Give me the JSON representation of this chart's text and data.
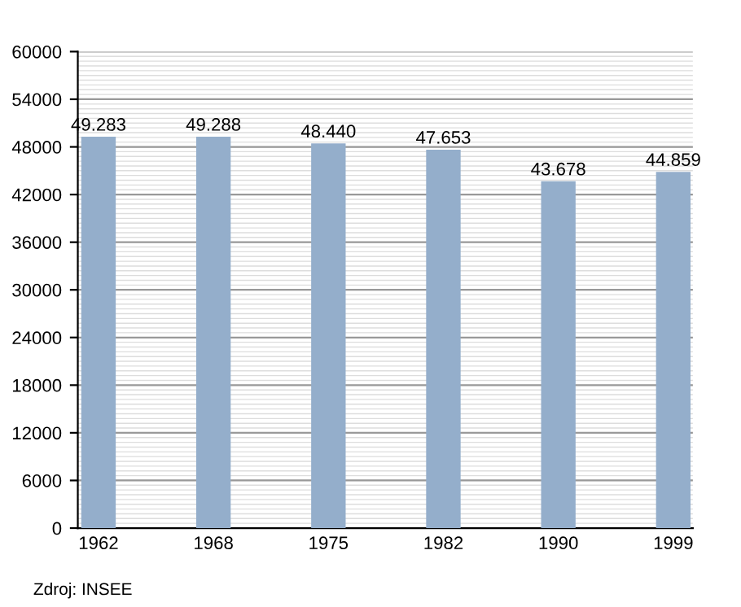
{
  "chart_data": {
    "type": "bar",
    "categories": [
      "1962",
      "1968",
      "1975",
      "1982",
      "1990",
      "1999"
    ],
    "values": [
      49283,
      49288,
      48440,
      47653,
      43678,
      44859
    ],
    "value_labels": [
      "49.283",
      "49.288",
      "48.440",
      "47.653",
      "43.678",
      "44.859"
    ],
    "color": "#94aecb",
    "ylim": [
      0,
      60000
    ],
    "yticks": [
      0,
      6000,
      12000,
      18000,
      24000,
      30000,
      36000,
      42000,
      48000,
      54000,
      60000
    ],
    "grid": "y",
    "annotations": [
      "Zdroj: INSEE"
    ]
  }
}
